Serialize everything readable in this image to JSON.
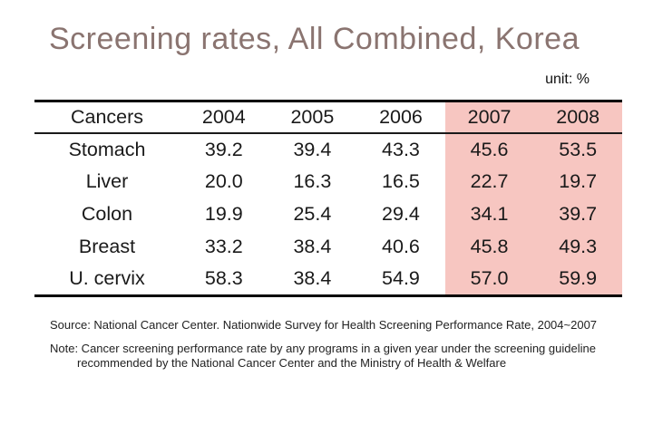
{
  "title": "Screening rates, All Combined, Korea",
  "unit_label": "unit: %",
  "table": {
    "columns": [
      "Cancers",
      "2004",
      "2005",
      "2006",
      "2007",
      "2008"
    ],
    "highlighted_columns": [
      "2007",
      "2008"
    ],
    "rows": [
      {
        "label": "Stomach",
        "values": [
          "39.2",
          "39.4",
          "43.3",
          "45.6",
          "53.5"
        ]
      },
      {
        "label": "Liver",
        "values": [
          "20.0",
          "16.3",
          "16.5",
          "22.7",
          "19.7"
        ]
      },
      {
        "label": "Colon",
        "values": [
          "19.9",
          "25.4",
          "29.4",
          "34.1",
          "39.7"
        ]
      },
      {
        "label": "Breast",
        "values": [
          "33.2",
          "38.4",
          "40.6",
          "45.8",
          "49.3"
        ]
      },
      {
        "label": "U. cervix",
        "values": [
          "58.3",
          "38.4",
          "54.9",
          "57.0",
          "59.9"
        ]
      }
    ]
  },
  "notes": {
    "source": "Source: National Cancer Center. Nationwide Survey for Health Screening Performance Rate, 2004~2007",
    "note_line1": "Note: Cancer screening performance rate by any programs in a given year under the screening guideline",
    "note_line2": "recommended by the National Cancer Center and the Ministry of Health & Welfare"
  },
  "colors": {
    "title": "#8a7470",
    "highlight": "#f7c6c1",
    "text": "#1a1a1a"
  },
  "chart_data": {
    "type": "table",
    "title": "Screening rates, All Combined, Korea",
    "unit": "%",
    "categories": [
      "2004",
      "2005",
      "2006",
      "2007",
      "2008"
    ],
    "series": [
      {
        "name": "Stomach",
        "values": [
          39.2,
          39.4,
          43.3,
          45.6,
          53.5
        ]
      },
      {
        "name": "Liver",
        "values": [
          20.0,
          16.3,
          16.5,
          22.7,
          19.7
        ]
      },
      {
        "name": "Colon",
        "values": [
          19.9,
          25.4,
          29.4,
          34.1,
          39.7
        ]
      },
      {
        "name": "Breast",
        "values": [
          33.2,
          38.4,
          40.6,
          45.8,
          49.3
        ]
      },
      {
        "name": "U. cervix",
        "values": [
          58.3,
          38.4,
          54.9,
          57.0,
          59.9
        ]
      }
    ],
    "highlighted_years": [
      "2007",
      "2008"
    ],
    "source": "National Cancer Center. Nationwide Survey for Health Screening Performance Rate, 2004~2007"
  }
}
